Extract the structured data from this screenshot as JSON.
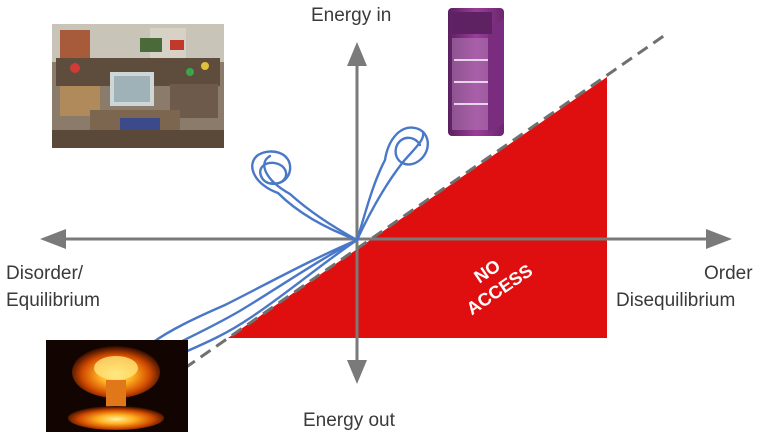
{
  "axes": {
    "top_label": "Energy in",
    "bottom_label": "Energy out",
    "left_label_line1": "Disorder/",
    "left_label_line2": "Equilibrium",
    "right_label_line1": "Order",
    "right_label_line2": "Disequilibrium"
  },
  "region": {
    "label_line1": "NO",
    "label_line2": "ACCESS",
    "fill_color": "#e00f0f"
  },
  "colors": {
    "axis": "#7a7a7a",
    "trajectory": "#4a78c8",
    "boundary": "#707070"
  },
  "pictures": {
    "top_left": "messy-room-photo",
    "top_right": "refrigerator-photo",
    "bottom_left": "explosion-photo"
  }
}
